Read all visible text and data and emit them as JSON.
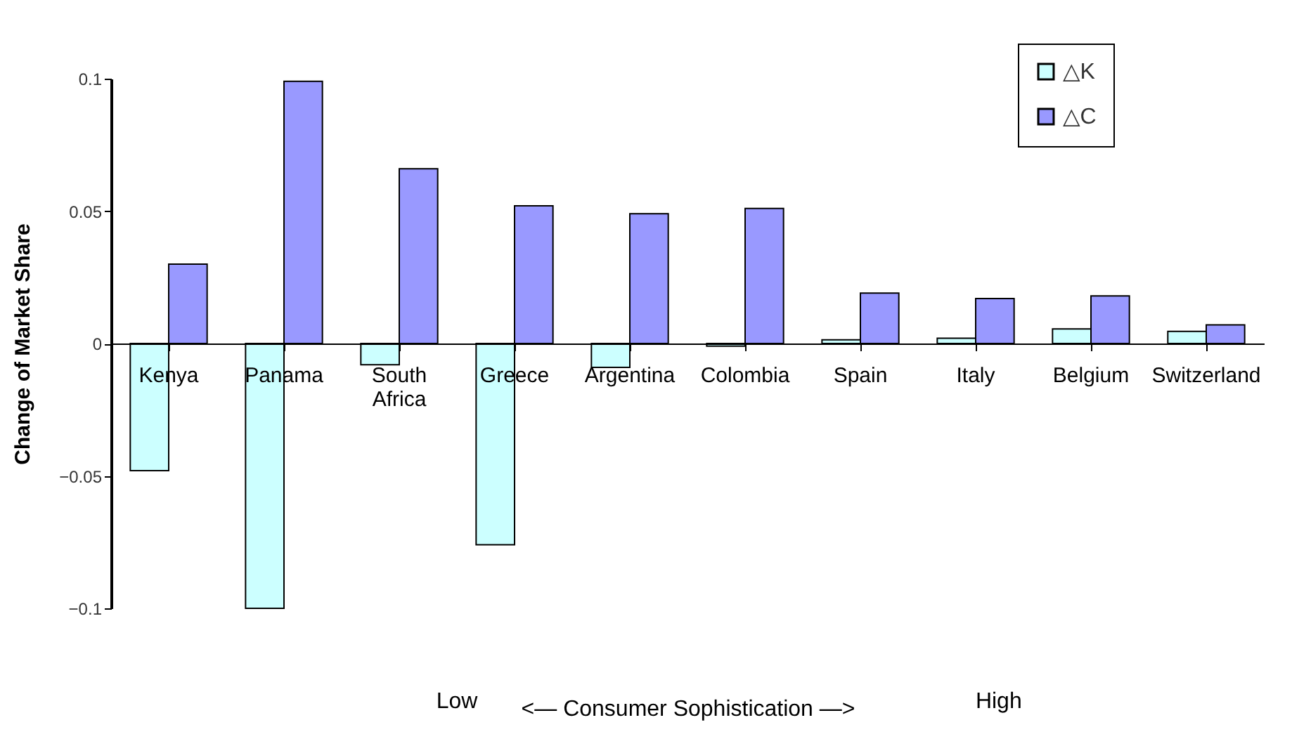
{
  "chart_data": {
    "type": "bar",
    "ylabel": "Change of Market Share",
    "xlabel": "<— Consumer Sophistication —>",
    "annotations": [
      "Low",
      "High"
    ],
    "categories": [
      "Kenya",
      "Panama",
      "South Africa",
      "Greece",
      "Argentina",
      "Colombia",
      "Spain",
      "Italy",
      "Belgium",
      "Switzerland"
    ],
    "series": [
      {
        "name": "△K",
        "color": "#ccffff",
        "values": [
          -0.048,
          -0.1,
          -0.008,
          -0.076,
          -0.009,
          -0.001,
          0.0014,
          0.002,
          0.0055,
          0.0046
        ]
      },
      {
        "name": "△C",
        "color": "#9999ff",
        "values": [
          0.03,
          0.099,
          0.066,
          0.052,
          0.049,
          0.051,
          0.019,
          0.017,
          0.018,
          0.007
        ]
      }
    ],
    "ylim": [
      -0.1,
      0.1
    ],
    "yticks": [
      -0.1,
      -0.05,
      0,
      0.05,
      0.1
    ],
    "grid": false,
    "legend": "top right"
  }
}
